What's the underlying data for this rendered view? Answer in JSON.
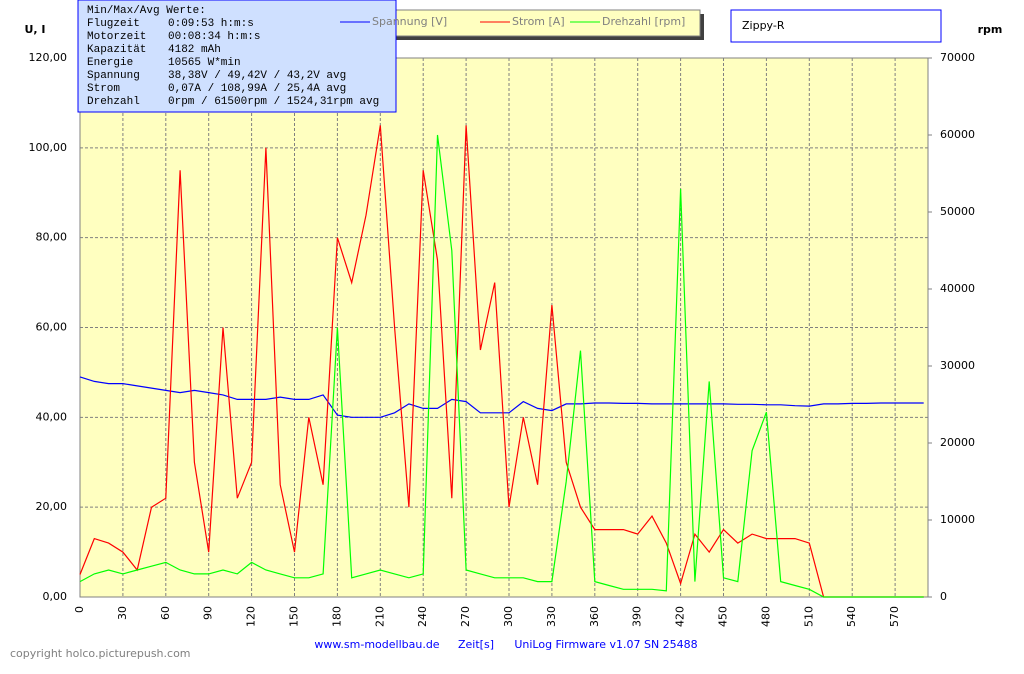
{
  "chart_data": {
    "type": "line",
    "y_label": "U, I",
    "y2_label": "rpm",
    "title": "Zippy-R",
    "x_label": "Zeit[s]",
    "footer_left": "www.sm-modellbau.de",
    "footer_right": "UniLog Firmware v1.07 SN 25488",
    "copyright": "copyright holco.picturepush.com",
    "info_box": {
      "title": "Min/Max/Avg Werte:",
      "rows": [
        [
          "Flugzeit",
          "0:09:53 h:m:s"
        ],
        [
          "Motorzeit",
          "00:08:34 h:m:s"
        ],
        [
          "Kapazität",
          "4182 mAh"
        ],
        [
          "Energie",
          "10565 W*min"
        ],
        [
          "Spannung",
          "38,38V / 49,42V / 43,2V avg"
        ],
        [
          "Strom",
          "0,07A / 108,99A / 25,4A avg"
        ],
        [
          "Drehzahl",
          "0rpm / 61500rpm / 1524,31rpm avg"
        ]
      ]
    },
    "grid": true,
    "background": "#ffffc0",
    "x": [
      0,
      10,
      20,
      30,
      40,
      50,
      60,
      70,
      80,
      90,
      100,
      110,
      120,
      130,
      140,
      150,
      160,
      170,
      180,
      190,
      200,
      210,
      220,
      230,
      240,
      250,
      260,
      270,
      280,
      290,
      300,
      310,
      320,
      330,
      340,
      350,
      360,
      370,
      380,
      390,
      400,
      410,
      420,
      430,
      440,
      450,
      460,
      470,
      480,
      490,
      500,
      510,
      520,
      530,
      540,
      550,
      560,
      570,
      580,
      590
    ],
    "xlim": [
      0,
      593
    ],
    "xticks": [
      0,
      30,
      60,
      90,
      120,
      150,
      180,
      210,
      240,
      270,
      300,
      330,
      360,
      390,
      420,
      450,
      480,
      510,
      540,
      570
    ],
    "ylim": [
      0,
      120
    ],
    "yticks": [
      {
        "value": 0,
        "label": "0,00"
      },
      {
        "value": 20,
        "label": "20,00"
      },
      {
        "value": 40,
        "label": "40,00"
      },
      {
        "value": 60,
        "label": "60,00"
      },
      {
        "value": 80,
        "label": "80,00"
      },
      {
        "value": 100,
        "label": "100,00"
      },
      {
        "value": 120,
        "label": "120,00"
      }
    ],
    "y2lim": [
      0,
      70000
    ],
    "y2ticks": [
      0,
      10000,
      20000,
      30000,
      40000,
      50000,
      60000,
      70000
    ],
    "series": [
      {
        "name": "Spannung [V]",
        "color": "#0000ff",
        "values": [
          49,
          48,
          47.5,
          47.5,
          47,
          46.5,
          46,
          45.5,
          46,
          45.5,
          45,
          44,
          44,
          44,
          44.5,
          44,
          44,
          45,
          40.5,
          40,
          40,
          40,
          41,
          43,
          42,
          42,
          44,
          43.5,
          41,
          41,
          41,
          43.5,
          42,
          41.5,
          43,
          43,
          43.2,
          43.2,
          43.1,
          43.1,
          43,
          43,
          43,
          43,
          43,
          43,
          42.9,
          42.9,
          42.8,
          42.8,
          42.6,
          42.5,
          43,
          43,
          43.1,
          43.1,
          43.2,
          43.2,
          43.2,
          43.2
        ]
      },
      {
        "name": "Strom [A]",
        "color": "#ff0000",
        "values": [
          5,
          13,
          12,
          10,
          6,
          20,
          22,
          95,
          30,
          10,
          60,
          22,
          30,
          100,
          25,
          10,
          40,
          25,
          80,
          70,
          85,
          105,
          60,
          20,
          95,
          75,
          22,
          105,
          55,
          70,
          20,
          40,
          25,
          65,
          30,
          20,
          15,
          15,
          15,
          14,
          18,
          12,
          3,
          14,
          10,
          15,
          12,
          14,
          13,
          13,
          13,
          12,
          0,
          0,
          0,
          0,
          0,
          0,
          0,
          0
        ]
      },
      {
        "name": "Drehzahl [rpm]",
        "color": "#00ff00",
        "axis": "y2",
        "values": [
          2000,
          3000,
          3500,
          3000,
          3500,
          4000,
          4500,
          3500,
          3000,
          3000,
          3500,
          3000,
          4500,
          3500,
          3000,
          2500,
          2500,
          3000,
          35000,
          2500,
          3000,
          3500,
          3000,
          2500,
          3000,
          60000,
          45000,
          3500,
          3000,
          2500,
          2500,
          2500,
          2000,
          2000,
          15000,
          32000,
          2000,
          1500,
          1000,
          1000,
          1000,
          800,
          53000,
          2000,
          28000,
          2500,
          2000,
          19000,
          24000,
          2000,
          1500,
          1000,
          0,
          0,
          0,
          0,
          0,
          0,
          0,
          0
        ]
      }
    ],
    "legend": "top"
  }
}
